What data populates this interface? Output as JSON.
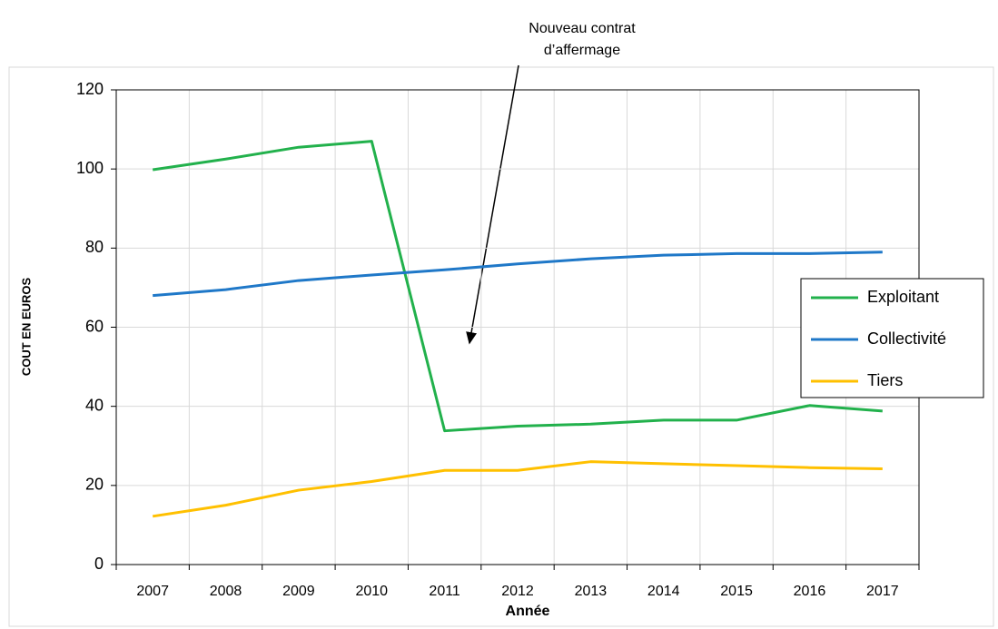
{
  "chart_data": {
    "type": "line",
    "annotation": [
      "Nouveau contrat",
      "d’affermage"
    ],
    "x_label": "Année",
    "y_label": "COUT EN EUROS",
    "categories": [
      "2007",
      "2008",
      "2009",
      "2010",
      "2011",
      "2012",
      "2013",
      "2014",
      "2015",
      "2016",
      "2017"
    ],
    "series": [
      {
        "name": "Exploitant",
        "color": "#22b14c",
        "values": [
          99.8,
          102.5,
          105.5,
          107,
          33.8,
          35,
          35.5,
          36.5,
          36.5,
          40.2,
          38.8
        ]
      },
      {
        "name": "Collectivité",
        "color": "#1f78c8",
        "values": [
          68,
          69.5,
          71.8,
          73.2,
          74.5,
          76,
          77.3,
          78.2,
          78.6,
          78.6,
          79
        ]
      },
      {
        "name": "Tiers",
        "color": "#ffc000",
        "values": [
          12.2,
          15,
          18.8,
          21,
          23.8,
          23.8,
          26,
          25.5,
          25,
          24.5,
          24.2
        ]
      }
    ],
    "ylim": [
      0,
      120
    ],
    "yticks": [
      0,
      20,
      40,
      60,
      80,
      100,
      120
    ],
    "grid": true,
    "legend": "right"
  }
}
